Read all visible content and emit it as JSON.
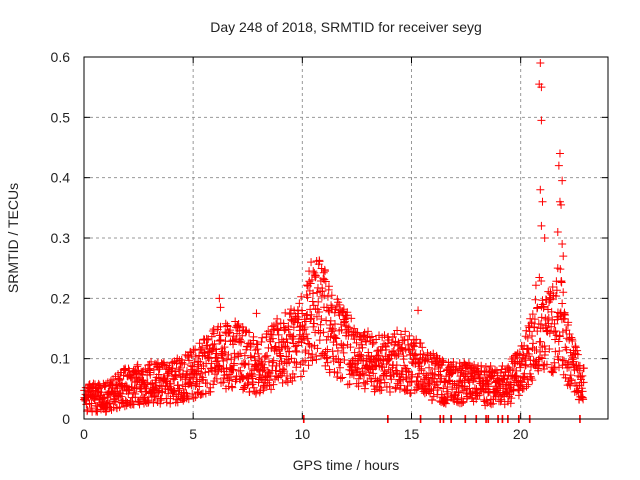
{
  "chart_data": {
    "type": "scatter",
    "title": "Day 248 of 2018, SRMTID for receiver seyg",
    "xlabel": "GPS time / hours",
    "ylabel": "SRMTID / TECUs",
    "xlim": [
      0,
      24
    ],
    "ylim": [
      0,
      0.6
    ],
    "xticks": [
      0,
      5,
      10,
      15,
      20
    ],
    "xtick_labels": [
      "0",
      "5",
      "10",
      "15",
      "20"
    ],
    "yticks": [
      0,
      0.1,
      0.2,
      0.3,
      0.4,
      0.5,
      0.6
    ],
    "ytick_labels": [
      "0",
      "0.1",
      "0.2",
      "0.3",
      "0.4",
      "0.5",
      "0.6"
    ],
    "grid": true,
    "marker": "plus",
    "color": "#ff0000",
    "legend": "none",
    "trend_profile": [
      [
        0.0,
        0.035
      ],
      [
        1.0,
        0.035
      ],
      [
        2.0,
        0.055
      ],
      [
        3.0,
        0.06
      ],
      [
        4.0,
        0.06
      ],
      [
        5.0,
        0.075
      ],
      [
        6.0,
        0.1
      ],
      [
        7.0,
        0.11
      ],
      [
        8.0,
        0.085
      ],
      [
        9.0,
        0.115
      ],
      [
        10.0,
        0.14
      ],
      [
        10.6,
        0.19
      ],
      [
        11.5,
        0.14
      ],
      [
        12.5,
        0.1
      ],
      [
        13.5,
        0.09
      ],
      [
        14.5,
        0.1
      ],
      [
        15.5,
        0.08
      ],
      [
        16.5,
        0.06
      ],
      [
        17.5,
        0.06
      ],
      [
        18.5,
        0.055
      ],
      [
        19.5,
        0.06
      ],
      [
        20.2,
        0.09
      ],
      [
        20.8,
        0.16
      ],
      [
        21.3,
        0.14
      ],
      [
        21.8,
        0.17
      ],
      [
        22.3,
        0.09
      ],
      [
        22.8,
        0.06
      ]
    ],
    "notable_points": [
      [
        6.2,
        0.2
      ],
      [
        6.25,
        0.185
      ],
      [
        10.4,
        0.26
      ],
      [
        10.5,
        0.245
      ],
      [
        10.6,
        0.235
      ],
      [
        20.9,
        0.59
      ],
      [
        20.85,
        0.555
      ],
      [
        20.95,
        0.55
      ],
      [
        20.95,
        0.495
      ],
      [
        20.9,
        0.38
      ],
      [
        21.0,
        0.36
      ],
      [
        20.95,
        0.32
      ],
      [
        21.1,
        0.3
      ],
      [
        21.8,
        0.44
      ],
      [
        21.75,
        0.42
      ],
      [
        21.9,
        0.395
      ],
      [
        21.8,
        0.36
      ],
      [
        21.85,
        0.355
      ],
      [
        21.7,
        0.31
      ],
      [
        21.9,
        0.29
      ],
      [
        21.95,
        0.27
      ],
      [
        21.7,
        0.25
      ],
      [
        11.0,
        0.205
      ],
      [
        11.9,
        0.165
      ],
      [
        12.2,
        0.09
      ],
      [
        12.25,
        0.08
      ],
      [
        7.9,
        0.175
      ],
      [
        15.3,
        0.18
      ]
    ],
    "zero_points_hours": [
      10.05,
      13.9,
      15.4,
      16.3,
      16.45,
      16.8,
      17.45,
      17.95,
      18.4,
      18.5,
      18.95,
      19.15,
      19.4,
      19.9,
      20.4,
      22.7
    ],
    "coverage_hours": [
      0,
      22.9
    ]
  }
}
